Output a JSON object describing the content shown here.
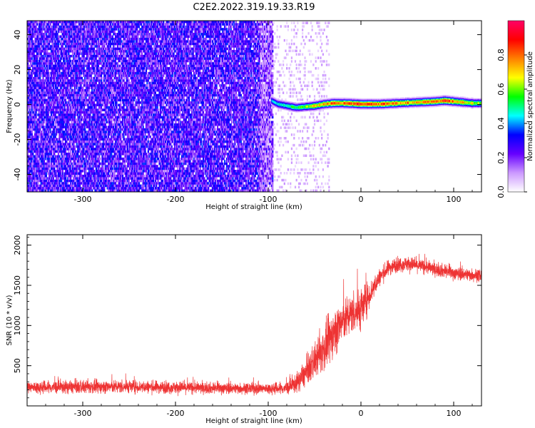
{
  "title": "C2E2.2022.319.19.33.R19",
  "chart_data": [
    {
      "type": "heatmap",
      "xlabel": "Height of straight line (km)",
      "ylabel": "Frequency (Hz)",
      "xlim": [
        -360,
        130
      ],
      "ylim": [
        -50,
        48
      ],
      "xticks": [
        -300,
        -200,
        -100,
        0,
        100
      ],
      "yticks": [
        -40,
        -20,
        0,
        20,
        40
      ],
      "colorbar": {
        "label": "Normalized spectral amplitude",
        "range": [
          0,
          1
        ],
        "ticks": [
          "0.0",
          "0.2",
          "0.4",
          "0.6",
          "0.8"
        ],
        "colors": [
          "#ffffff",
          "#cc99ff",
          "#6600ff",
          "#0000ff",
          "#00ffff",
          "#00ff00",
          "#ffff00",
          "#ff8000",
          "#ff0000",
          "#ff0066"
        ]
      },
      "noise_region": {
        "x_range": [
          -360,
          -95
        ],
        "amplitude": 0.25
      },
      "scatter_region": {
        "x_range": [
          -95,
          -35
        ],
        "amplitude": 0.08
      },
      "signal_trace": {
        "x": [
          -97,
          -90,
          -80,
          -70,
          -60,
          -50,
          -40,
          -30,
          -20,
          -10,
          0,
          20,
          40,
          60,
          80,
          90,
          100,
          110,
          120,
          130
        ],
        "frequency": [
          2,
          0,
          -1,
          -2,
          -1.5,
          -1,
          0,
          0.5,
          0.5,
          0.3,
          0,
          0,
          0.5,
          1,
          1.5,
          2,
          1.5,
          1,
          0.5,
          0.5
        ],
        "amplitude": [
          0.4,
          0.45,
          0.5,
          0.55,
          0.6,
          0.7,
          0.75,
          0.8,
          0.85,
          0.85,
          0.9,
          0.85,
          0.8,
          0.75,
          0.8,
          0.9,
          0.8,
          0.7,
          0.65,
          0.6
        ]
      }
    },
    {
      "type": "line",
      "xlabel": "Height of straight line (km)",
      "ylabel": "SNR (10 * v/v)",
      "xlim": [
        -360,
        130
      ],
      "ylim": [
        0,
        2130
      ],
      "xticks": [
        -300,
        -200,
        -100,
        0,
        100
      ],
      "yticks": [
        500,
        1000,
        1500,
        2000
      ],
      "color": "#ee3333",
      "series": [
        {
          "x": [
            -360,
            -300,
            -250,
            -200,
            -150,
            -100,
            -80,
            -70,
            -60,
            -50,
            -40,
            -30,
            -20,
            -10,
            0,
            10,
            20,
            30,
            40,
            50,
            60,
            70,
            80,
            90,
            100,
            110,
            120,
            130
          ],
          "values": [
            230,
            235,
            240,
            230,
            220,
            215,
            220,
            280,
            400,
            560,
            700,
            900,
            1050,
            1150,
            1200,
            1400,
            1600,
            1720,
            1760,
            1770,
            1750,
            1730,
            1700,
            1680,
            1650,
            1640,
            1630,
            1620
          ],
          "spread": [
            150,
            150,
            150,
            140,
            130,
            130,
            150,
            220,
            300,
            400,
            500,
            550,
            500,
            450,
            500,
            300,
            200,
            180,
            170,
            170,
            160,
            160,
            160,
            160,
            150,
            150,
            150,
            150
          ]
        }
      ]
    }
  ]
}
